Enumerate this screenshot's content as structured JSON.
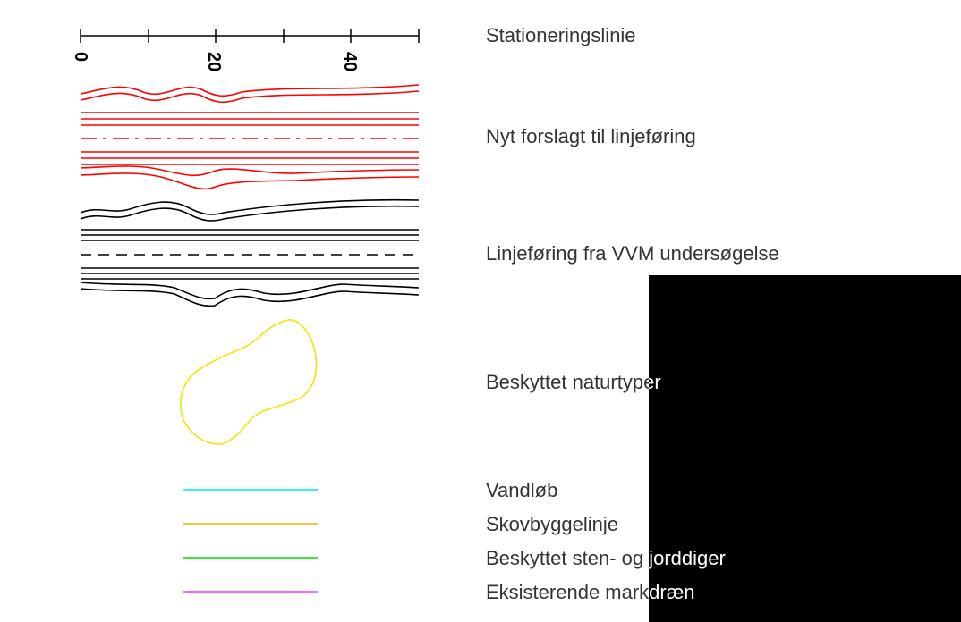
{
  "scale": {
    "ticks": [
      "0",
      "20",
      "40"
    ]
  },
  "legend": {
    "stationing": "Stationeringslinie",
    "new_proposal": "Nyt forslagt til linjeføring",
    "vvm_alignment": "Linjeføring fra VVM undersøgelse",
    "protected_nature": "Beskyttet naturtyper",
    "watercourse": "Vandløb",
    "forest_building_line": "Skovbyggelinje",
    "protected_dikes": "Beskyttet sten- og jorddiger",
    "existing_drains": "Eksisterende markdræn"
  },
  "colors": {
    "new_proposal": "#ff0000",
    "vvm_alignment": "#000000",
    "protected_nature": "#f2e600",
    "watercourse": "#00e5ff",
    "forest_building_line": "#f0b400",
    "protected_dikes": "#00dd00",
    "existing_drains": "#ff33ff"
  }
}
